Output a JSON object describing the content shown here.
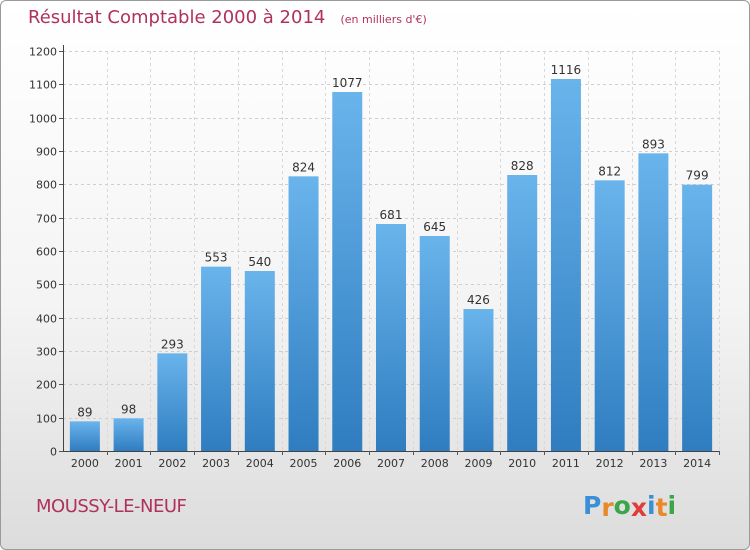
{
  "title": "Résultat Comptable 2000 à 2014",
  "subtitle": "(en milliers d'€)",
  "commune": "MOUSSY-LE-NEUF",
  "logo": {
    "letters": [
      "P",
      "r",
      "o",
      "x",
      "i",
      "t",
      "i"
    ],
    "colors": [
      "#3b8fd6",
      "#e8892a",
      "#3aa64a",
      "#e23b3b",
      "#3b8fd6",
      "#e8892a",
      "#3aa64a"
    ]
  },
  "colors": {
    "bar_top": "#6ab4ec",
    "bar_bottom": "#2f7dc0",
    "accent": "#b0315e"
  },
  "chart_data": {
    "type": "bar",
    "categories": [
      "2000",
      "2001",
      "2002",
      "2003",
      "2004",
      "2005",
      "2006",
      "2007",
      "2008",
      "2009",
      "2010",
      "2011",
      "2012",
      "2013",
      "2014"
    ],
    "values": [
      89,
      98,
      293,
      553,
      540,
      824,
      1077,
      681,
      645,
      426,
      828,
      1116,
      812,
      893,
      799
    ],
    "ylim": [
      0,
      1200
    ],
    "yticks": [
      0,
      100,
      200,
      300,
      400,
      500,
      600,
      700,
      800,
      900,
      1000,
      1100,
      1200
    ],
    "grid": true
  }
}
